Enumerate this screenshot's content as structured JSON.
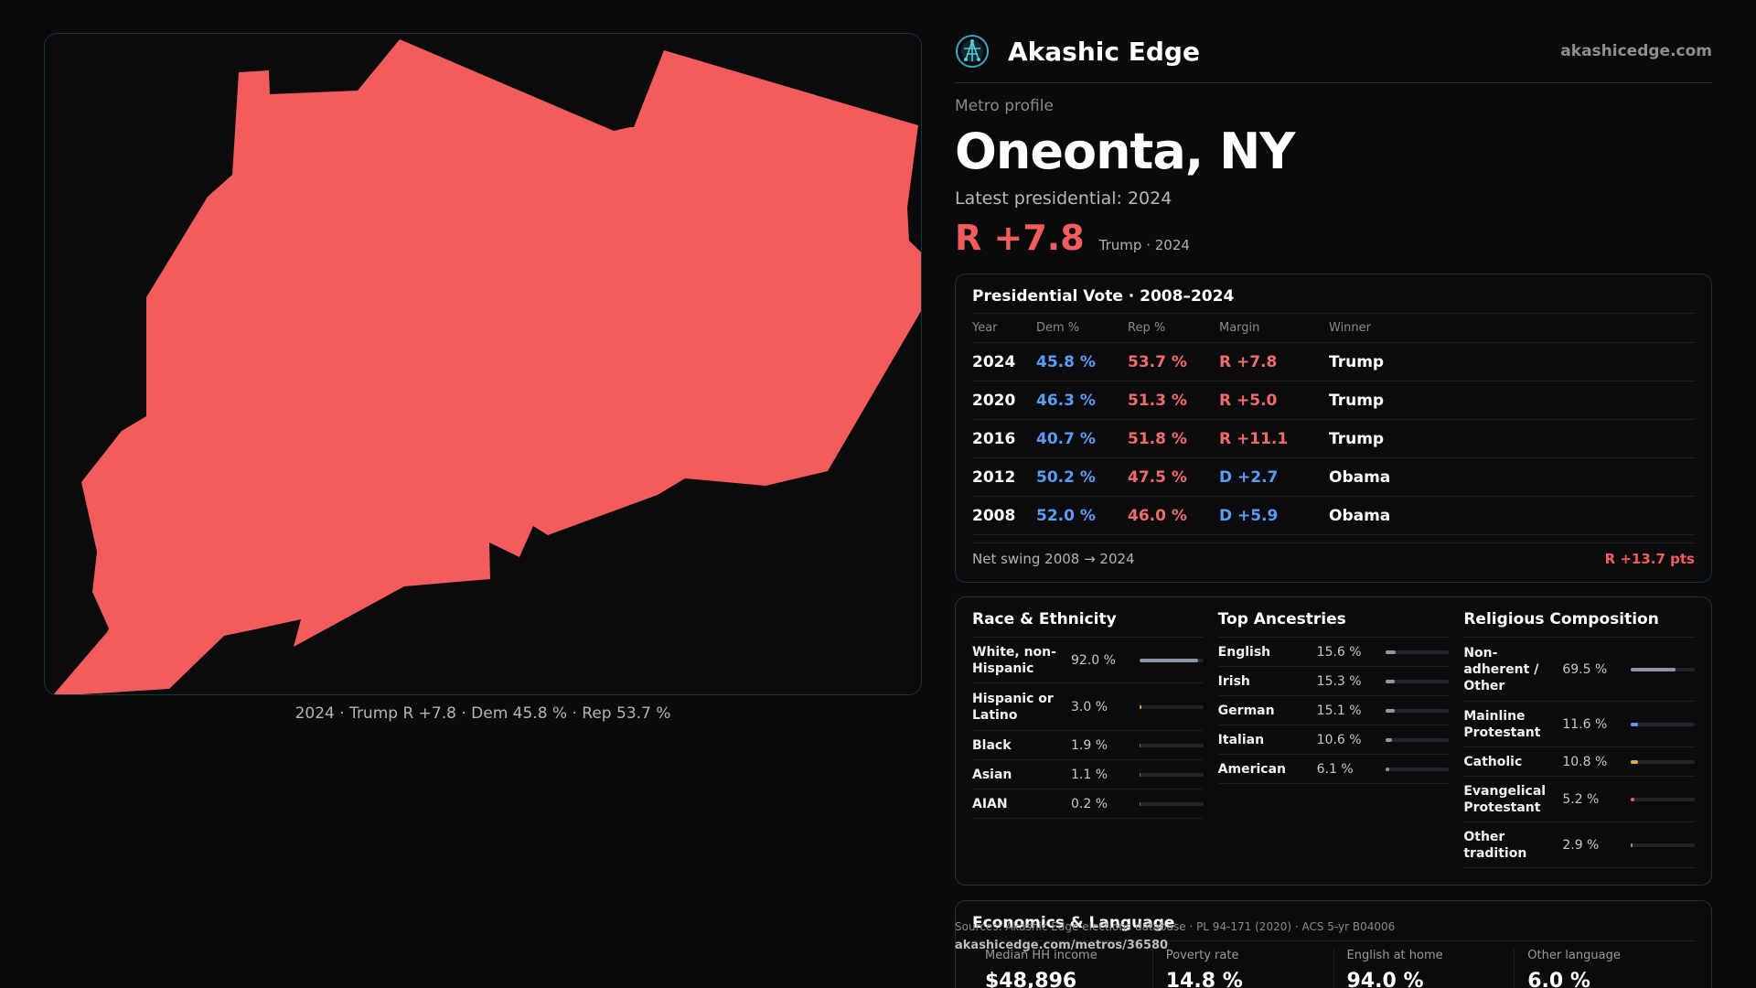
{
  "brand": {
    "name": "Akashic Edge",
    "url": "akashicedge.com",
    "logo_icon": "network-globe-icon"
  },
  "profile": {
    "eyebrow": "Metro profile",
    "title": "Oneonta, NY",
    "latest_label": "Latest presidential: 2024",
    "margin": "R +7.8",
    "margin_sub": "Trump · 2024"
  },
  "map": {
    "caption": "2024 · Trump R +7.8 · Dem 45.8 % · Rep 53.7 %",
    "fill_color": "#f25c5c",
    "icon": "county-shape-map"
  },
  "vote": {
    "title": "Presidential Vote · 2008–2024",
    "headers": {
      "year": "Year",
      "dem": "Dem %",
      "rep": "Rep %",
      "margin": "Margin",
      "winner": "Winner"
    },
    "rows": [
      {
        "year": "2024",
        "dem": "45.8 %",
        "rep": "53.7 %",
        "margin": "R +7.8",
        "party": "R",
        "winner": "Trump"
      },
      {
        "year": "2020",
        "dem": "46.3 %",
        "rep": "51.3 %",
        "margin": "R +5.0",
        "party": "R",
        "winner": "Trump"
      },
      {
        "year": "2016",
        "dem": "40.7 %",
        "rep": "51.8 %",
        "margin": "R +11.1",
        "party": "R",
        "winner": "Trump"
      },
      {
        "year": "2012",
        "dem": "50.2 %",
        "rep": "47.5 %",
        "margin": "D +2.7",
        "party": "D",
        "winner": "Obama"
      },
      {
        "year": "2008",
        "dem": "52.0 %",
        "rep": "46.0 %",
        "margin": "D +5.9",
        "party": "D",
        "winner": "Obama"
      }
    ],
    "swing_label": "Net swing 2008 → 2024",
    "swing_value": "R +13.7 pts"
  },
  "race": {
    "title": "Race & Ethnicity",
    "rows": [
      {
        "label": "White, non-Hispanic",
        "value": "92.0 %",
        "fraction": 0.92,
        "color": "#8b97a6"
      },
      {
        "label": "Hispanic or Latino",
        "value": "3.0 %",
        "fraction": 0.03,
        "color": "#e0a23a"
      },
      {
        "label": "Black",
        "value": "1.9 %",
        "fraction": 0.019,
        "color": "#6a6aa8"
      },
      {
        "label": "Asian",
        "value": "1.1 %",
        "fraction": 0.011,
        "color": "#4a8a8a"
      },
      {
        "label": "AIAN",
        "value": "0.2 %",
        "fraction": 0.002,
        "color": "#8a6a4a"
      }
    ]
  },
  "ancestry": {
    "title": "Top Ancestries",
    "rows": [
      {
        "label": "English",
        "value": "15.6 %",
        "fraction": 0.156,
        "color": "#8b97a6"
      },
      {
        "label": "Irish",
        "value": "15.3 %",
        "fraction": 0.153,
        "color": "#8b97a6"
      },
      {
        "label": "German",
        "value": "15.1 %",
        "fraction": 0.151,
        "color": "#8b97a6"
      },
      {
        "label": "Italian",
        "value": "10.6 %",
        "fraction": 0.106,
        "color": "#8b97a6"
      },
      {
        "label": "American",
        "value": "6.1 %",
        "fraction": 0.061,
        "color": "#8b97a6"
      }
    ]
  },
  "religion": {
    "title": "Religious Composition",
    "rows": [
      {
        "label": "Non-adherent / Other",
        "value": "69.5 %",
        "fraction": 0.695,
        "color": "#8b97a6"
      },
      {
        "label": "Mainline Protestant",
        "value": "11.6 %",
        "fraction": 0.116,
        "color": "#5b9cf5"
      },
      {
        "label": "Catholic",
        "value": "10.8 %",
        "fraction": 0.108,
        "color": "#e0b23a"
      },
      {
        "label": "Evangelical Protestant",
        "value": "5.2 %",
        "fraction": 0.052,
        "color": "#f25c5c"
      },
      {
        "label": "Other tradition",
        "value": "2.9 %",
        "fraction": 0.029,
        "color": "#8b97a6"
      }
    ]
  },
  "economics": {
    "title": "Economics & Language",
    "cells": [
      {
        "label": "Median HH income",
        "value": "$48,896"
      },
      {
        "label": "Poverty rate",
        "value": "14.8 %"
      },
      {
        "label": "English at home",
        "value": "94.0 %"
      },
      {
        "label": "Other language",
        "value": "6.0 %"
      }
    ]
  },
  "footer": {
    "sources": "Sources: Akashic Edge elections database · PL 94-171 (2020) · ACS 5-yr B04006",
    "url": "akashicedge.com/metros/36580"
  }
}
